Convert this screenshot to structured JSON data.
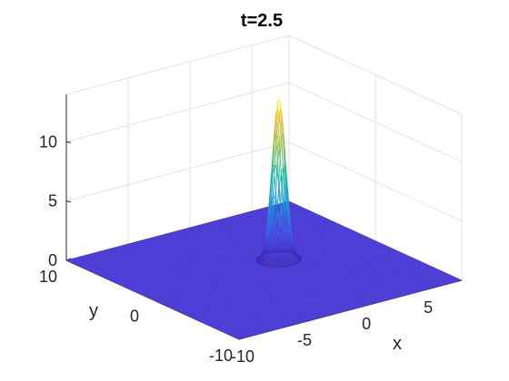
{
  "chart_data": {
    "type": "surface",
    "title": "t=2.5",
    "xlabel": "x",
    "ylabel": "y",
    "zlabel": "",
    "xlim": [
      -10,
      8
    ],
    "ylim": [
      -10,
      10
    ],
    "zlim": [
      0,
      14
    ],
    "xticks": [
      -10,
      -5,
      0,
      5
    ],
    "yticks": [
      -10,
      0,
      10
    ],
    "zticks": [
      0,
      5,
      10
    ],
    "xtick_labels": [
      "-10",
      "-5",
      "0",
      "5"
    ],
    "ytick_labels": [
      "-10",
      "0",
      "10"
    ],
    "ztick_labels": [
      "0",
      "5",
      "10"
    ],
    "grid": true,
    "colormap": "parula",
    "background_color": "#4a3bd3",
    "peak": {
      "x": 0.9,
      "y": 1.0,
      "z": 13.5,
      "width": 0.45
    }
  }
}
